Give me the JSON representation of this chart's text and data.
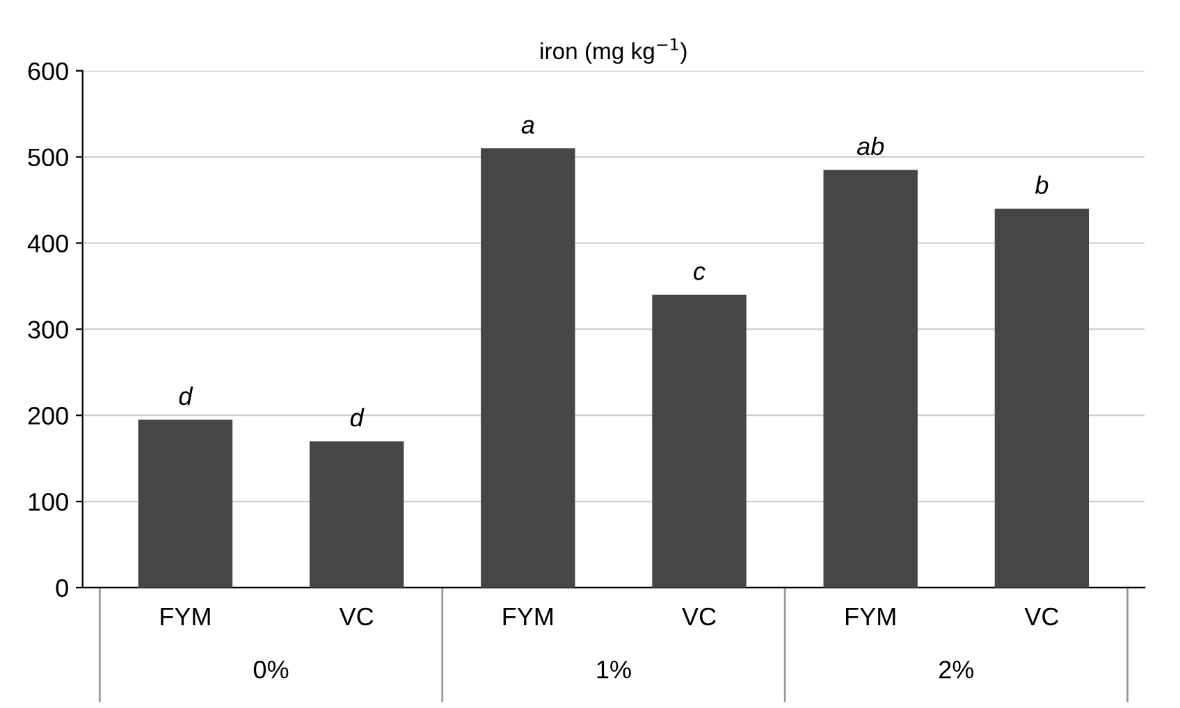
{
  "chart_data": {
    "type": "bar",
    "title": "iron (mg kg$^{−1}$)",
    "categories": [
      "FYM",
      "VC",
      "FYM",
      "VC",
      "FYM",
      "VC"
    ],
    "values": [
      195,
      170,
      510,
      340,
      485,
      440
    ],
    "value_labels": [
      "d",
      "d",
      "a",
      "c",
      "ab",
      "b"
    ],
    "color": "#464646",
    "ylim": [
      0,
      600
    ],
    "yticks": [
      0,
      100,
      200,
      300,
      400,
      500,
      600
    ],
    "grid": "y",
    "annotations": [
      "0%",
      "1%",
      "2%"
    ]
  }
}
